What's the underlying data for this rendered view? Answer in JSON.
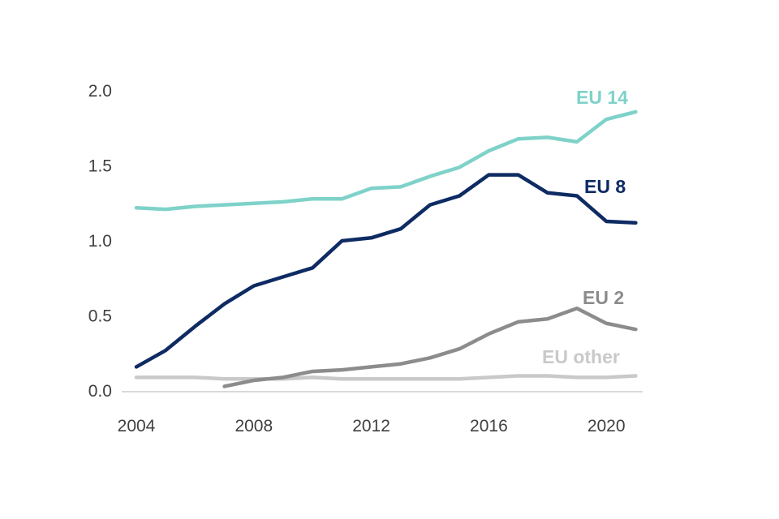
{
  "chart_data": {
    "type": "line",
    "title": "",
    "xlabel": "",
    "ylabel": "",
    "x_axis": {
      "min": 2004,
      "max": 2021,
      "ticks": [
        2004,
        2008,
        2012,
        2016,
        2020
      ]
    },
    "y_axis": {
      "min": 0,
      "max": 2.0,
      "ticks": [
        0.0,
        0.5,
        1.0,
        1.5,
        2.0
      ],
      "tick_labels": [
        "0.0",
        "0.5",
        "1.0",
        "1.5",
        "2.0"
      ]
    },
    "grid": false,
    "legend_position": "inline-labels",
    "series": [
      {
        "name": "EU 14",
        "color": "#7ED2C9",
        "start_year": 2004,
        "values": [
          1.22,
          1.21,
          1.23,
          1.24,
          1.25,
          1.26,
          1.28,
          1.28,
          1.35,
          1.36,
          1.43,
          1.49,
          1.6,
          1.68,
          1.69,
          1.66,
          1.81,
          1.86
        ]
      },
      {
        "name": "EU 8",
        "color": "#0E2B63",
        "start_year": 2004,
        "values": [
          0.16,
          0.27,
          0.43,
          0.58,
          0.7,
          0.76,
          0.82,
          1.0,
          1.02,
          1.08,
          1.24,
          1.3,
          1.44,
          1.44,
          1.32,
          1.3,
          1.13,
          1.12
        ]
      },
      {
        "name": "EU 2",
        "color": "#8C8C8C",
        "start_year": 2007,
        "values": [
          0.03,
          0.07,
          0.09,
          0.13,
          0.14,
          0.16,
          0.18,
          0.22,
          0.28,
          0.38,
          0.46,
          0.48,
          0.55,
          0.45,
          0.41
        ]
      },
      {
        "name": "EU other",
        "color": "#C9C9C9",
        "start_year": 2004,
        "values": [
          0.09,
          0.09,
          0.09,
          0.08,
          0.08,
          0.08,
          0.09,
          0.08,
          0.08,
          0.08,
          0.08,
          0.08,
          0.09,
          0.1,
          0.1,
          0.09,
          0.09,
          0.1
        ]
      }
    ]
  },
  "colors": {
    "axis_line": "#D9D9D9",
    "tick_text": "#404040",
    "background": "#FFFFFF"
  }
}
